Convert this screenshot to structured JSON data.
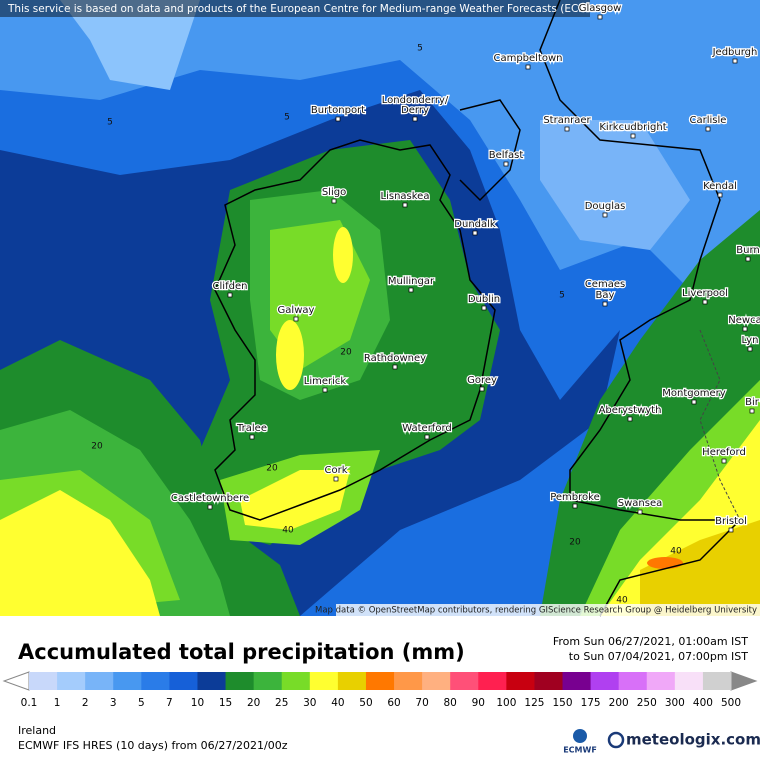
{
  "notice": "This service is based on data and products of the European Centre for Medium-range Weather Forecasts (ECMWF)",
  "cities": [
    "Glasgow",
    "Campbeltown",
    "Jedburgh",
    "Burtonport",
    "Londonderry/",
    "Derry",
    "Stranraer",
    "Kirkcudbright",
    "Carlisle",
    "Belfast",
    "Sligo",
    "Lisnaskea",
    "Kendal",
    "Douglas",
    "Dundalk",
    "Burn",
    "Clifden",
    "Mullingar",
    "Cemaes",
    "Bay",
    "Liverpool",
    "Dublin",
    "Galway",
    "Newca",
    "Lyn",
    "Rathdowney",
    "Limerick",
    "Gorey",
    "Montgomery",
    "Bir",
    "Aberystwyth",
    "Tralee",
    "Waterford",
    "Hereford",
    "Cork",
    "Castletownbere",
    "Pembroke",
    "Swansea",
    "Bristol"
  ],
  "contour_labels": [
    "5",
    "5",
    "5",
    "5",
    "20",
    "20",
    "20",
    "20",
    "40",
    "40",
    "40"
  ],
  "attribution": "Map data © OpenStreetMap contributors, rendering GIScience Research Group @ Heidelberg University",
  "title": "Accumulated total precipitation (mm)",
  "period": {
    "from": "From Sun 06/27/2021, 01:00am IST",
    "to": "to Sun 07/04/2021, 07:00pm IST"
  },
  "legend": {
    "labels": [
      0.1,
      1,
      2,
      3,
      5,
      7,
      10,
      15,
      20,
      25,
      30,
      40,
      50,
      60,
      70,
      80,
      90,
      100,
      125,
      150,
      175,
      200,
      250,
      300,
      400,
      500
    ],
    "colors": [
      "#c8d8fa",
      "#a4ccfc",
      "#78b4f8",
      "#4898f0",
      "#2a7ce8",
      "#1660d8",
      "#0c3c98",
      "#1e8c2c",
      "#3cb43c",
      "#78dc28",
      "#ffff30",
      "#e8d000",
      "#ff7800",
      "#ff9848",
      "#ffb080",
      "#ff5078",
      "#ff2050",
      "#c80010",
      "#a00020",
      "#780090",
      "#b040f0",
      "#d870f8",
      "#f0a8f8",
      "#f8e0f8",
      "#d0d0d0"
    ]
  },
  "region": "Ireland",
  "model": "ECMWF IFS HRES (10 days) from 06/27/2021/00z",
  "logos": {
    "ecmwf": "ECMWF",
    "meteologix": "meteologix.com"
  }
}
